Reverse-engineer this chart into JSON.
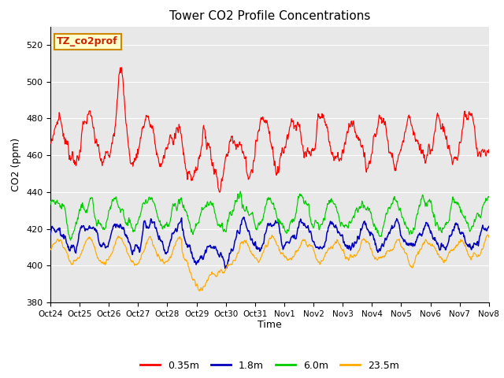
{
  "title": "Tower CO2 Profile Concentrations",
  "xlabel": "Time",
  "ylabel": "CO2 (ppm)",
  "ylim": [
    380,
    530
  ],
  "yticks": [
    380,
    400,
    420,
    440,
    460,
    480,
    500,
    520
  ],
  "xtick_labels": [
    "Oct 24",
    "Oct 25",
    "Oct 26",
    "Oct 27",
    "Oct 28",
    "Oct 29",
    "Oct 30",
    "Oct 31",
    "Nov 1",
    "Nov 2",
    "Nov 3",
    "Nov 4",
    "Nov 5",
    "Nov 6",
    "Nov 7",
    "Nov 8"
  ],
  "annotation_text": "TZ_co2prof",
  "annotation_bg": "#ffffcc",
  "annotation_border": "#cc8800",
  "legend_labels": [
    "0.35m",
    "1.8m",
    "6.0m",
    "23.5m"
  ],
  "legend_colors": [
    "#ff0000",
    "#0000bb",
    "#00cc00",
    "#ffaa00"
  ],
  "line_colors": {
    "0.35m": "#ff0000",
    "1.8m": "#0000bb",
    "6.0m": "#00cc00",
    "23.5m": "#ffaa00"
  },
  "axes_bg": "#e8e8e8",
  "n_points": 1000,
  "seed": 7
}
